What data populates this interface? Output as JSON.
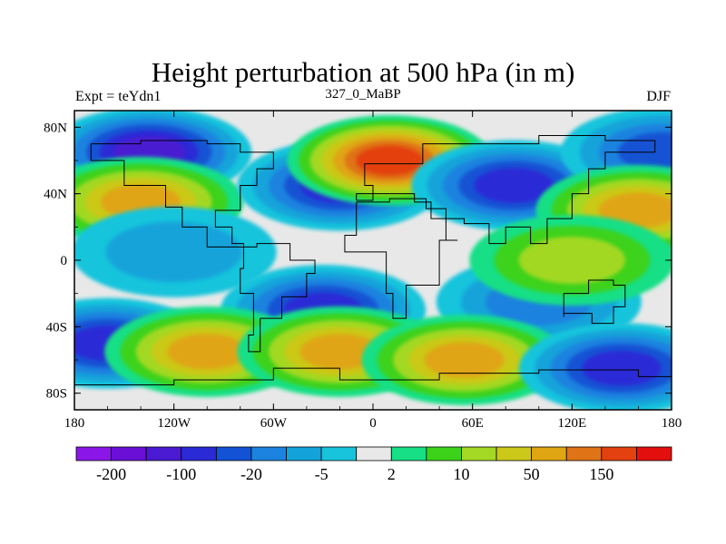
{
  "chart_data": {
    "type": "heatmap",
    "title": "Height perturbation at 500 hPa (in m)",
    "left_label": "Expt = teYdn1",
    "center_label": "327_0_MaBP",
    "right_label": "DJF",
    "x_ticks": [
      "180",
      "120W",
      "60W",
      "0",
      "60E",
      "120E",
      "180"
    ],
    "x_tick_values": [
      -180,
      -120,
      -60,
      0,
      60,
      120,
      180
    ],
    "y_ticks": [
      "80N",
      "40N",
      "0",
      "40S",
      "80S"
    ],
    "y_tick_values": [
      80,
      40,
      0,
      -40,
      -80
    ],
    "xlim": [
      -180,
      180
    ],
    "ylim": [
      -90,
      90
    ],
    "colorbar": {
      "colors": [
        "#8a17e8",
        "#6a0fd6",
        "#4a1ad2",
        "#2a2ad6",
        "#1352d4",
        "#1b82df",
        "#13a3da",
        "#17c4dc",
        "#e8e8e8",
        "#17df86",
        "#3cd21a",
        "#a3d824",
        "#cbc819",
        "#e0a513",
        "#df7316",
        "#e3410f",
        "#e30f0f"
      ],
      "labels": [
        "-200",
        "-100",
        "-20",
        "-5",
        "2",
        "10",
        "50",
        "150"
      ]
    },
    "fields": [
      {
        "lon": -135,
        "lat": 65,
        "value": -120
      },
      {
        "lon": -140,
        "lat": 35,
        "value": 70
      },
      {
        "lon": -20,
        "lat": 45,
        "value": -60
      },
      {
        "lon": 10,
        "lat": 60,
        "value": 160
      },
      {
        "lon": 85,
        "lat": 45,
        "value": -90
      },
      {
        "lon": 175,
        "lat": 65,
        "value": -40
      },
      {
        "lon": 160,
        "lat": 30,
        "value": 60
      },
      {
        "lon": -120,
        "lat": 5,
        "value": -8
      },
      {
        "lon": -30,
        "lat": -30,
        "value": -70
      },
      {
        "lon": 100,
        "lat": -25,
        "value": -10
      },
      {
        "lon": -160,
        "lat": -50,
        "value": -70
      },
      {
        "lon": -100,
        "lat": -55,
        "value": 80
      },
      {
        "lon": -20,
        "lat": -55,
        "value": 70
      },
      {
        "lon": 55,
        "lat": -60,
        "value": 70
      },
      {
        "lon": 150,
        "lat": -65,
        "value": -80
      },
      {
        "lon": 120,
        "lat": 0,
        "value": 12
      }
    ]
  }
}
